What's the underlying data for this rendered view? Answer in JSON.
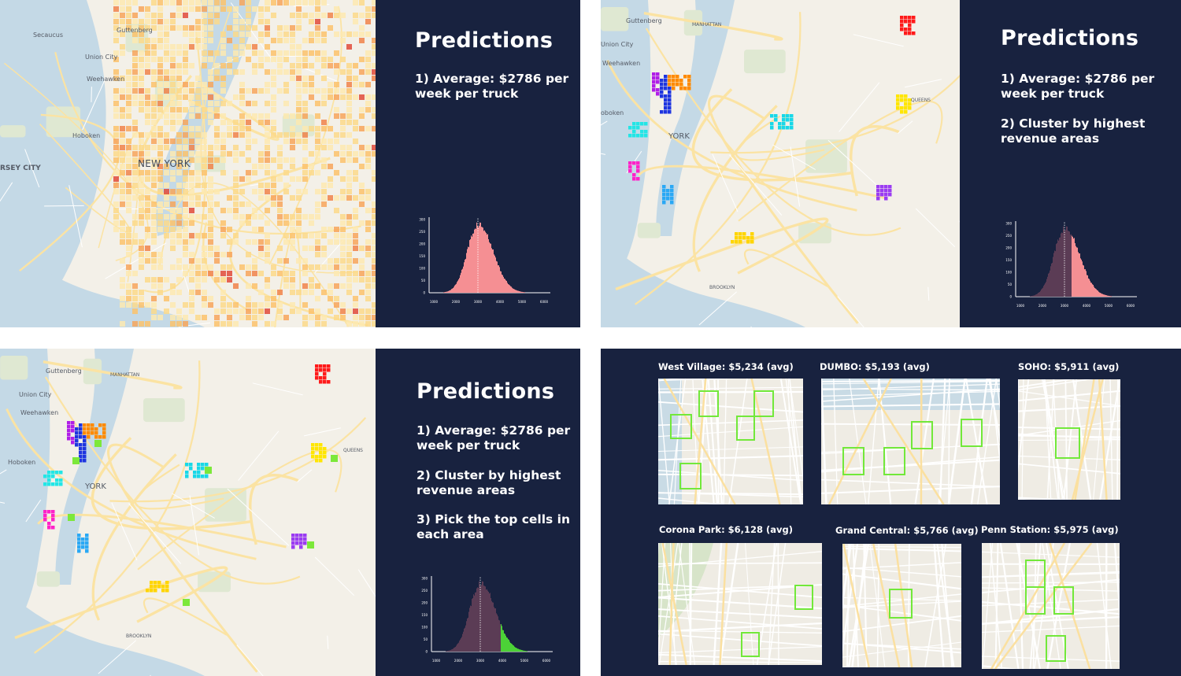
{
  "panels": {
    "p1": {
      "title": "Predictions",
      "points": [
        "1) Average: $2786 per week per truck"
      ],
      "map_labels": [
        "Secaucus",
        "Guttenberg",
        "Union City",
        "Weehawken",
        "Hoboken",
        "RSEY CITY",
        "NEW YORK"
      ],
      "hist_highlight": "all"
    },
    "p2": {
      "title": "Predictions",
      "points": [
        "1) Average: $2786 per week per truck",
        "2) Cluster by highest revenue areas"
      ],
      "map_labels": [
        "Guttenberg",
        "Union City",
        "Weehawken",
        "oboken",
        "YORK",
        "QUEENS",
        "BROOKLYN",
        "MANHATTAN"
      ],
      "hist_highlight": "right-tail"
    },
    "p3": {
      "title": "Predictions",
      "points": [
        "1) Average: $2786 per week per truck",
        "2) Cluster by highest revenue areas",
        "3) Pick the top cells in each area"
      ],
      "map_labels": [
        "Guttenberg",
        "Union City",
        "Weehawken",
        "Hoboken",
        "YORK",
        "QUEENS",
        "BROOKLYN",
        "MANHATTAN"
      ],
      "hist_highlight": "top-cells"
    }
  },
  "histogram": {
    "x_ticks": [
      "1000",
      "2000",
      "3000",
      "4000",
      "5000",
      "6000"
    ],
    "y_ticks": [
      "0",
      "50",
      "100",
      "150",
      "200",
      "250",
      "300"
    ],
    "colors": {
      "all": "#f58f93",
      "dim": "#5b3c55",
      "tail": "#f58f93",
      "top": "#4cd137"
    }
  },
  "areas": [
    {
      "label": "West Village: $5,234 (avg)"
    },
    {
      "label": "DUMBO: $5,193 (avg)"
    },
    {
      "label": "SOHO: $5,911 (avg)"
    },
    {
      "label": "Corona Park: $6,128 (avg)"
    },
    {
      "label": "Grand Central: $5,766 (avg)"
    },
    {
      "label": "Penn Station: $5,975 (avg)"
    }
  ],
  "colors": {
    "dark_panel": "#18223f",
    "highlight_box": "#72e83a",
    "cluster_colors": [
      "#ff1a1a",
      "#ffe600",
      "#9b3cf2",
      "#ffd500",
      "#2aa8f5",
      "#ff22c8",
      "#22e6e6",
      "#1e35e0",
      "#ff8a00",
      "#b01ee8",
      "#18d8e8"
    ]
  }
}
